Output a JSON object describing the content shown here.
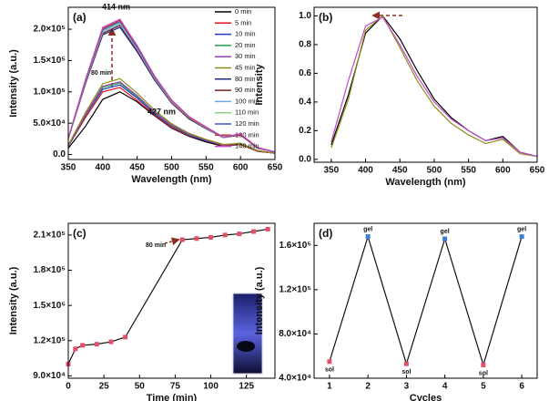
{
  "chart_data": [
    {
      "type": "line",
      "label": "(a)",
      "xlabel": "Wavelength (nm)",
      "ylabel": "Intensity (a.u.)",
      "annotations": [
        "414 nm",
        "80 min",
        "427 nm"
      ],
      "legend": "upper right",
      "x": [
        350,
        375,
        400,
        425,
        450,
        475,
        500,
        525,
        550,
        575,
        600,
        625,
        650
      ],
      "xlim": [
        350,
        650
      ],
      "xticks": [
        350,
        400,
        450,
        500,
        550,
        600,
        650
      ],
      "ylim": [
        -8000,
        235000
      ],
      "yticks": [
        {
          "value": 0,
          "label": "0.0"
        },
        {
          "value": 50000,
          "label": "5.0×10⁴"
        },
        {
          "value": 100000,
          "label": "1.0×10⁵"
        },
        {
          "value": 150000,
          "label": "1.5×10⁵"
        },
        {
          "value": 200000,
          "label": "2.0×10⁵"
        }
      ],
      "series": [
        {
          "name": "0 min",
          "color": "#000000",
          "values": [
            10000,
            45000,
            88000,
            100000,
            84000,
            62000,
            42000,
            29000,
            20000,
            13000,
            16000,
            5000,
            2000
          ]
        },
        {
          "name": "5 min",
          "color": "#e4141b",
          "values": [
            13000,
            59000,
            100000,
            107000,
            86000,
            63000,
            43000,
            30000,
            22000,
            14000,
            16000,
            5000,
            2000
          ]
        },
        {
          "name": "10 min",
          "color": "#2236c8",
          "values": [
            13000,
            62000,
            104000,
            111000,
            90000,
            65000,
            45000,
            31000,
            22000,
            15000,
            17000,
            6000,
            2000
          ]
        },
        {
          "name": "20 min",
          "color": "#22a04a",
          "values": [
            14000,
            63000,
            107000,
            114000,
            92000,
            67000,
            46000,
            32000,
            23000,
            15000,
            17000,
            6000,
            2000
          ]
        },
        {
          "name": "30 min",
          "color": "#9b3fb5",
          "values": [
            14000,
            64000,
            109000,
            116000,
            94000,
            68000,
            47000,
            33000,
            23000,
            15000,
            18000,
            6000,
            2000
          ]
        },
        {
          "name": "45 min",
          "color": "#8c8c1a",
          "values": [
            15000,
            67000,
            113000,
            121000,
            98000,
            71000,
            49000,
            34000,
            24000,
            16000,
            18000,
            6000,
            2000
          ]
        },
        {
          "name": "80 min",
          "color": "#1b2a80",
          "values": [
            25000,
            113000,
            191000,
            203000,
            164000,
            119000,
            82000,
            57000,
            41000,
            27000,
            31000,
            10000,
            4000
          ]
        },
        {
          "name": "90 min",
          "color": "#7a1f1f",
          "values": [
            25000,
            114000,
            193000,
            206000,
            166000,
            121000,
            83000,
            58000,
            42000,
            27000,
            31000,
            10000,
            4000
          ]
        },
        {
          "name": "100 min",
          "color": "#6fa8e0",
          "values": [
            25000,
            116000,
            195000,
            208000,
            168000,
            122000,
            84000,
            59000,
            42000,
            27000,
            32000,
            11000,
            4000
          ]
        },
        {
          "name": "110 min",
          "color": "#8fd08f",
          "values": [
            25000,
            117000,
            197000,
            210000,
            170000,
            123000,
            85000,
            59000,
            42000,
            28000,
            32000,
            11000,
            4000
          ]
        },
        {
          "name": "120 min",
          "color": "#3d55c9",
          "values": [
            26000,
            118000,
            199000,
            212000,
            171000,
            124000,
            86000,
            60000,
            43000,
            28000,
            32000,
            11000,
            4000
          ]
        },
        {
          "name": "130 min",
          "color": "#c0392b",
          "values": [
            26000,
            119000,
            201000,
            214000,
            173000,
            125000,
            86000,
            60000,
            43000,
            28000,
            32000,
            11000,
            4000
          ]
        },
        {
          "name": "140 min",
          "color": "#c24bc8",
          "values": [
            26000,
            120000,
            203000,
            216000,
            174000,
            126000,
            87000,
            61000,
            44000,
            28000,
            33000,
            11000,
            4000
          ]
        }
      ]
    },
    {
      "type": "line",
      "label": "(b)",
      "xlabel": "Wavelength (nm)",
      "ylabel": "Intensity",
      "x": [
        350,
        375,
        400,
        425,
        450,
        475,
        500,
        525,
        550,
        575,
        600,
        625,
        650
      ],
      "xlim": [
        325,
        650
      ],
      "xticks": [
        350,
        400,
        450,
        500,
        550,
        600,
        650
      ],
      "ylim": [
        -0.02,
        1.06
      ],
      "yticks": [
        {
          "value": 0,
          "label": "0.0"
        },
        0.2,
        0.4,
        0.6,
        0.8,
        {
          "value": 1,
          "label": "1.0"
        }
      ],
      "series": [
        {
          "color": "#000000",
          "values": [
            0.1,
            0.45,
            0.88,
            1.0,
            0.84,
            0.62,
            0.42,
            0.29,
            0.2,
            0.13,
            0.16,
            0.05,
            0.02
          ]
        },
        {
          "color": "#8c8c1a",
          "values": [
            0.08,
            0.42,
            0.9,
            1.0,
            0.78,
            0.55,
            0.37,
            0.25,
            0.17,
            0.11,
            0.14,
            0.04,
            0.02
          ]
        },
        {
          "color": "#c24bc8",
          "values": [
            0.12,
            0.55,
            0.93,
            0.99,
            0.8,
            0.58,
            0.4,
            0.28,
            0.2,
            0.13,
            0.15,
            0.05,
            0.02
          ]
        }
      ]
    },
    {
      "type": "line",
      "label": "(c)",
      "xlabel": "Time (min)",
      "ylabel": "Intensity (a.u.)",
      "annotations": [
        "80 min"
      ],
      "x": [
        0,
        5,
        10,
        20,
        30,
        40,
        80,
        90,
        100,
        110,
        120,
        130,
        140
      ],
      "xlim": [
        0,
        145
      ],
      "xticks": [
        0,
        25,
        50,
        75,
        100,
        125
      ],
      "ylim": [
        88000,
        220000
      ],
      "yticks": [
        {
          "value": 90000,
          "label": "9.0×10⁴"
        },
        {
          "value": 120000,
          "label": "1.2×10⁵"
        },
        {
          "value": 150000,
          "label": "1.5×10⁵"
        },
        {
          "value": 180000,
          "label": "1.8×10⁵"
        },
        {
          "value": 210000,
          "label": "2.1×10⁵"
        }
      ],
      "series": [
        {
          "color": "#111111",
          "marker_color": "#e0506a",
          "values": [
            100000,
            113000,
            116000,
            117000,
            119000,
            123000,
            206000,
            207000,
            208000,
            210000,
            211000,
            213000,
            215000
          ]
        }
      ]
    },
    {
      "type": "line",
      "label": "(d)",
      "xlabel": "Cycles",
      "ylabel": "Intensity (a.u.)",
      "x": [
        1,
        2,
        3,
        4,
        5,
        6
      ],
      "xlim": [
        0.6,
        6.4
      ],
      "xticks": [
        1,
        2,
        3,
        4,
        5,
        6
      ],
      "ylim": [
        40000,
        180000
      ],
      "yticks": [
        {
          "value": 40000,
          "label": "4.0×10⁴"
        },
        {
          "value": 80000,
          "label": "8.0×10⁴"
        },
        {
          "value": 120000,
          "label": "1.2×10⁵"
        },
        {
          "value": 160000,
          "label": "1.6×10⁵"
        }
      ],
      "series": [
        {
          "color": "#111111",
          "marker_colors": [
            "#e0506a",
            "#3b7dd8",
            "#e0506a",
            "#3b7dd8",
            "#e0506a",
            "#3b7dd8"
          ],
          "point_labels": [
            "sol",
            "gel",
            "sol",
            "gel",
            "sol",
            "gel"
          ],
          "values": [
            55000,
            168000,
            53000,
            166000,
            52000,
            168000
          ]
        }
      ]
    }
  ]
}
